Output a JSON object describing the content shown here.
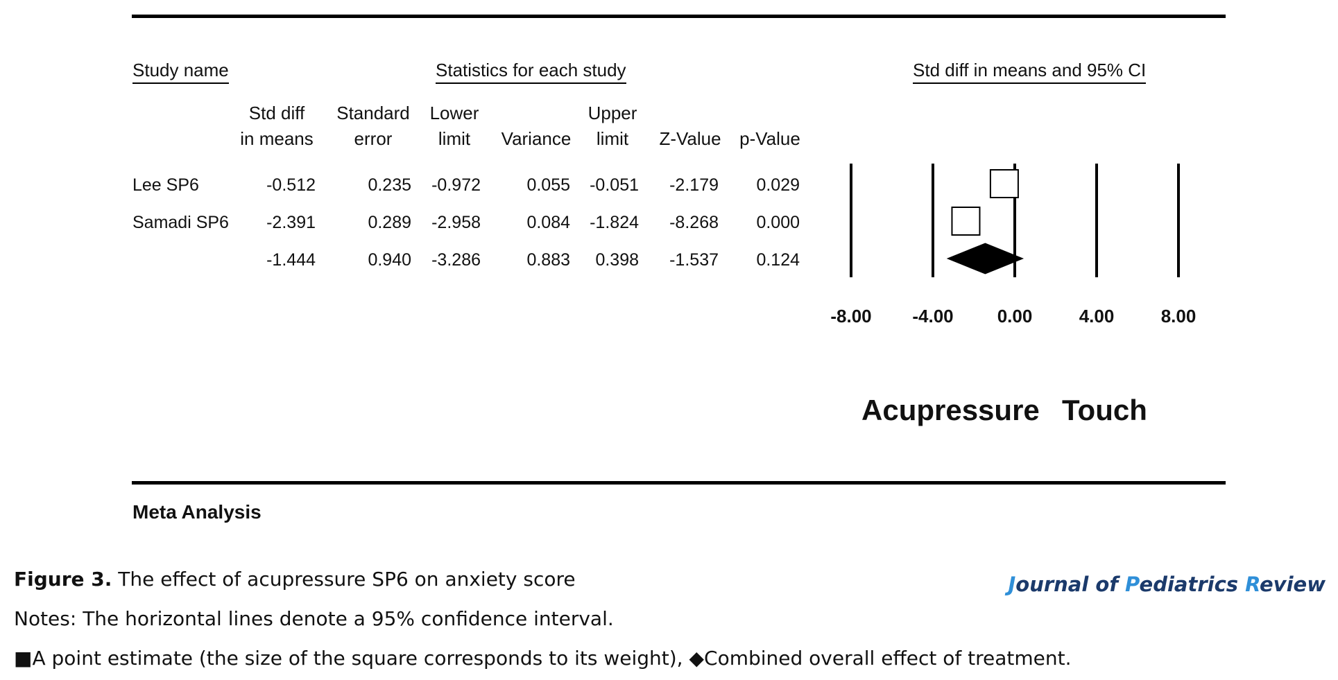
{
  "headers": {
    "study_name": "Study name",
    "statistics": "Statistics for each study",
    "ci": "Std diff in means and 95% CI"
  },
  "columns": [
    {
      "line1": "Std diff",
      "line2": "in means"
    },
    {
      "line1": "Standard",
      "line2": "error"
    },
    {
      "line1": "Lower",
      "line2": "limit"
    },
    {
      "line1": "",
      "line2": "Variance"
    },
    {
      "line1": "Upper",
      "line2": "limit"
    },
    {
      "line1": "",
      "line2": "Z-Value"
    },
    {
      "line1": "",
      "line2": "p-Value"
    }
  ],
  "rows": [
    {
      "name": "Lee SP6",
      "values": [
        "-0.512",
        "0.235",
        "-0.972",
        "0.055",
        "-0.051",
        "-2.179",
        "0.029"
      ]
    },
    {
      "name": "Samadi SP6",
      "values": [
        "-2.391",
        "0.289",
        "-2.958",
        "0.084",
        "-1.824",
        "-8.268",
        "0.000"
      ]
    },
    {
      "name": "",
      "values": [
        "-1.444",
        "0.940",
        "-3.286",
        "0.883",
        "0.398",
        "-1.537",
        "0.124"
      ]
    }
  ],
  "axis_ticks": [
    "-8.00",
    "-4.00",
    "0.00",
    "4.00",
    "8.00"
  ],
  "favors": {
    "left": "Acupressure",
    "right": "Touch"
  },
  "footer_label": "Meta Analysis",
  "caption": {
    "figure_label": "Figure 3.",
    "title": " The effect of acupressure SP6 on anxiety score",
    "notes": "Notes: The horizontal lines denote a 95% confidence interval.",
    "legend": "■A point estimate (the size of the square corresponds to its weight), ◆Combined overall effect of treatment."
  },
  "journal": {
    "parts": [
      {
        "text": "J",
        "cap": true
      },
      {
        "text": "ournal of ",
        "cap": false
      },
      {
        "text": "P",
        "cap": true
      },
      {
        "text": "ediatrics ",
        "cap": false
      },
      {
        "text": "R",
        "cap": true
      },
      {
        "text": "eview",
        "cap": false
      }
    ]
  },
  "colors": {
    "journal_dark": "#1b3a6b",
    "journal_accent": "#2f8fd8",
    "ink": "#000000"
  },
  "chart_data": {
    "type": "forest",
    "xlim": [
      -8,
      8
    ],
    "ticks": [
      -8,
      -4,
      0,
      4,
      8
    ],
    "studies": [
      {
        "name": "Lee SP6",
        "estimate": -0.512,
        "lower": -0.972,
        "upper": -0.051
      },
      {
        "name": "Samadi SP6",
        "estimate": -2.391,
        "lower": -2.958,
        "upper": -1.824
      }
    ],
    "summary": {
      "estimate": -1.444,
      "lower": -3.286,
      "upper": 0.398
    }
  }
}
